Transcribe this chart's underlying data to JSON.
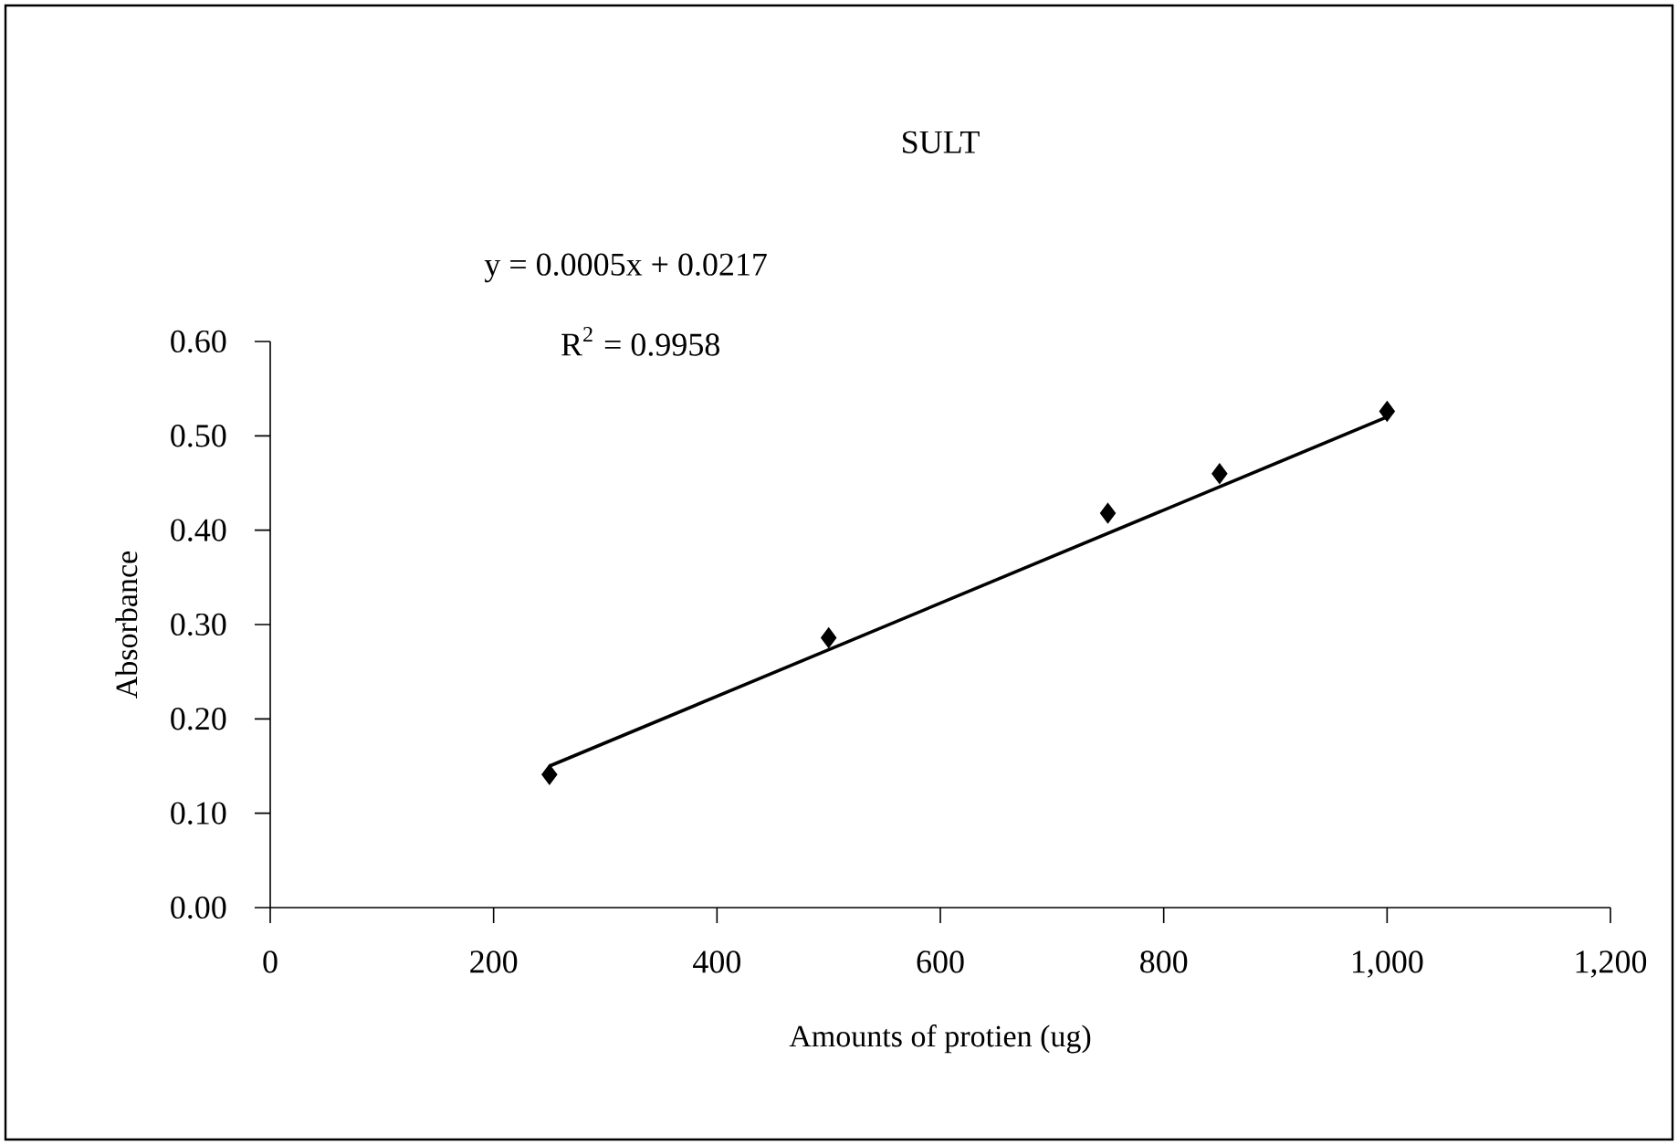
{
  "chart_data": {
    "type": "scatter",
    "title": "SULT",
    "xlabel": "Amounts of protien (ug)",
    "ylabel": "Absorbance",
    "annotations": [
      "y = 0.0005x + 0.0217",
      "R$^{2}$ = 0.9958"
    ],
    "xlim": [
      0,
      1200
    ],
    "xticks": [
      0,
      200,
      400,
      600,
      800,
      {
        "value": 1000,
        "label": "1,000"
      },
      {
        "value": 1200,
        "label": "1,200"
      }
    ],
    "ylim": [
      0,
      0.6
    ],
    "yticks": [
      {
        "value": 0,
        "label": "0.00"
      },
      {
        "value": 0.1,
        "label": "0.10"
      },
      {
        "value": 0.2,
        "label": "0.20"
      },
      {
        "value": 0.3,
        "label": "0.30"
      },
      {
        "value": 0.4,
        "label": "0.40"
      },
      {
        "value": 0.5,
        "label": "0.50"
      },
      {
        "value": 0.6,
        "label": "0.60"
      }
    ],
    "grid": false,
    "marker": "diamond",
    "series": [
      {
        "color": "#000000",
        "x": [
          250,
          500,
          750,
          850,
          1000
        ],
        "values": [
          0.141,
          0.286,
          0.418,
          0.46,
          0.526
        ]
      },
      {
        "type": "line",
        "color": "#000000",
        "marker": "none",
        "line_style": "solid",
        "x": [
          250,
          1000
        ],
        "values": [
          0.15,
          0.52
        ]
      }
    ]
  }
}
